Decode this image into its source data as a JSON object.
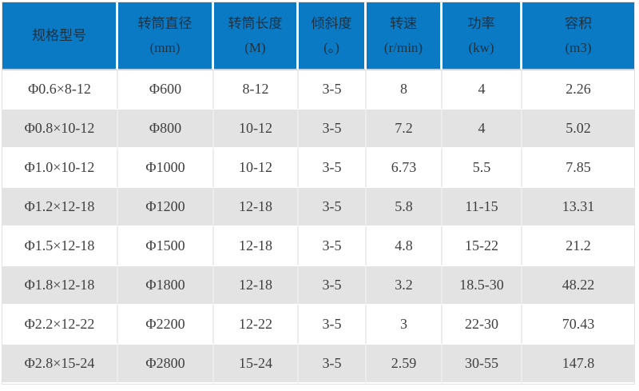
{
  "colors": {
    "header_bg": "#0b7ac5",
    "header_text": "#1b3242",
    "header_underline": "#bcd4e8",
    "row_alt_bg": "#e3e3e3",
    "row_bg": "#ffffff",
    "body_text": "#3f3f3f",
    "grid_line": "#ececec"
  },
  "chart_data": {
    "type": "table",
    "title": "",
    "columns": [
      {
        "title": "规格型号",
        "unit": ""
      },
      {
        "title": "转筒直径",
        "unit": "(mm)"
      },
      {
        "title": "转筒长度",
        "unit": "(M)"
      },
      {
        "title": "倾斜度",
        "unit": "(。)"
      },
      {
        "title": "转速",
        "unit": "(r/min)"
      },
      {
        "title": "功率",
        "unit": "(kw)"
      },
      {
        "title": "容积",
        "unit": "(m3)"
      }
    ],
    "rows": [
      [
        "Φ0.6×8-12",
        "Φ600",
        "8-12",
        "3-5",
        "8",
        "4",
        "2.26"
      ],
      [
        "Φ0.8×10-12",
        "Φ800",
        "10-12",
        "3-5",
        "7.2",
        "4",
        "5.02"
      ],
      [
        "Φ1.0×10-12",
        "Φ1000",
        "10-12",
        "3-5",
        "6.73",
        "5.5",
        "7.85"
      ],
      [
        "Φ1.2×12-18",
        "Φ1200",
        "12-18",
        "3-5",
        "5.8",
        "11-15",
        "13.31"
      ],
      [
        "Φ1.5×12-18",
        "Φ1500",
        "12-18",
        "3-5",
        "4.8",
        "15-22",
        "21.2"
      ],
      [
        "Φ1.8×12-18",
        "Φ1800",
        "12-18",
        "3-5",
        "3.2",
        "18.5-30",
        "48.22"
      ],
      [
        "Φ2.2×12-22",
        "Φ2200",
        "12-22",
        "3-5",
        "3",
        "22-30",
        "70.43"
      ],
      [
        "Φ2.8×15-24",
        "Φ2800",
        "15-24",
        "3-5",
        "2.59",
        "30-55",
        "147.8"
      ]
    ]
  }
}
